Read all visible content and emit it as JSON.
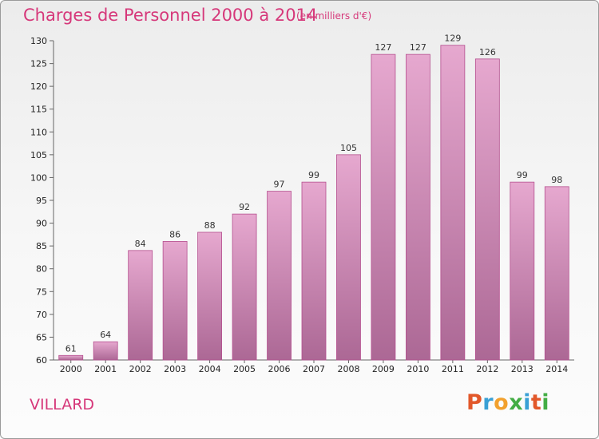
{
  "title": "Charges de Personnel 2000 à 2014",
  "subtitle": "(en milliers d'€)",
  "place": "VILLARD",
  "logo": {
    "text": "Proxiti",
    "colors": [
      "#e2582a",
      "#3aa0d5",
      "#f2a12e",
      "#44ad45",
      "#3aa0d5",
      "#e2582a",
      "#44ad45"
    ]
  },
  "colors": {
    "accent": "#d6387a",
    "bar_top": "#e6a8cf",
    "bar_bottom": "#ac6895",
    "bar_edge": "#b5508f"
  },
  "chart_data": {
    "type": "bar",
    "categories": [
      "2000",
      "2001",
      "2002",
      "2003",
      "2004",
      "2005",
      "2006",
      "2007",
      "2008",
      "2009",
      "2010",
      "2011",
      "2012",
      "2013",
      "2014"
    ],
    "values": [
      61,
      64,
      84,
      86,
      88,
      92,
      97,
      99,
      105,
      127,
      127,
      129,
      126,
      99,
      98
    ],
    "title": "Charges de Personnel 2000 à 2014",
    "subtitle": "(en milliers d'€)",
    "ylim": [
      60,
      130
    ],
    "yticks": [
      60,
      65,
      70,
      75,
      80,
      85,
      90,
      95,
      100,
      105,
      110,
      115,
      120,
      125,
      130
    ],
    "grid": false,
    "data_labels": true
  }
}
